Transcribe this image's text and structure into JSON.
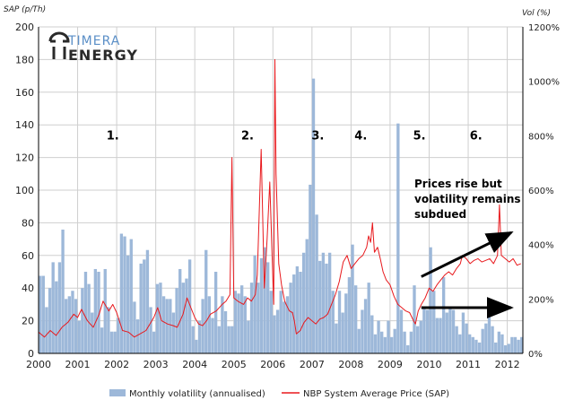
{
  "brand": {
    "logo_line1": "TIMERA",
    "logo_line2": "ENERGY"
  },
  "chart_data": {
    "type": "bar+line",
    "ylabel_left": "SAP (p/Th)",
    "ylabel_right": "Vol (%)",
    "ylim_left": [
      0,
      200
    ],
    "ylim_right": [
      0,
      1200
    ],
    "yticks_left": [
      "0",
      "20",
      "40",
      "60",
      "80",
      "100",
      "120",
      "140",
      "160",
      "180",
      "200"
    ],
    "yticks_right": [
      "0%",
      "200%",
      "400%",
      "600%",
      "800%",
      "1000%",
      "1200%"
    ],
    "xlim": [
      2000.0,
      2012.4
    ],
    "xticks": [
      "2000",
      "2001",
      "2002",
      "2003",
      "2004",
      "2005",
      "2006",
      "2007",
      "2008",
      "2009",
      "2010",
      "2011",
      "2012"
    ],
    "grid": true,
    "legend_position": "bottom",
    "series": [
      {
        "name": "Monthly volatility (annualised)",
        "type": "bar",
        "axis": "right",
        "color": "#9db8d9",
        "x_start": 2000.0,
        "step": 0.08333,
        "values": [
          285,
          285,
          170,
          240,
          335,
          265,
          335,
          455,
          200,
          210,
          230,
          200,
          120,
          240,
          300,
          255,
          150,
          310,
          300,
          95,
          310,
          170,
          80,
          80,
          130,
          440,
          430,
          360,
          420,
          190,
          125,
          330,
          345,
          380,
          170,
          80,
          255,
          260,
          210,
          200,
          200,
          150,
          240,
          310,
          260,
          275,
          345,
          100,
          50,
          120,
          200,
          380,
          210,
          130,
          300,
          100,
          210,
          155,
          100,
          100,
          230,
          220,
          250,
          210,
          120,
          260,
          360,
          260,
          350,
          390,
          335,
          230,
          140,
          160,
          230,
          190,
          210,
          260,
          290,
          320,
          300,
          370,
          420,
          620,
          1010,
          510,
          340,
          370,
          330,
          370,
          230,
          110,
          230,
          150,
          220,
          280,
          400,
          250,
          90,
          160,
          200,
          260,
          140,
          70,
          120,
          80,
          60,
          120,
          60,
          90,
          845,
          160,
          80,
          30,
          80,
          250,
          100,
          120,
          170,
          160,
          390,
          230,
          130,
          130,
          280,
          150,
          170,
          160,
          100,
          70,
          150,
          110,
          70,
          60,
          50,
          40,
          90,
          110,
          140,
          100,
          40,
          80,
          70,
          30,
          35,
          60,
          60,
          50,
          60,
          90,
          150,
          150,
          140,
          140,
          60,
          100,
          80,
          60,
          40,
          80,
          40,
          60,
          120,
          90,
          100,
          80,
          50,
          40,
          35,
          60,
          70,
          75,
          75
        ]
      },
      {
        "name": "NBP System Average Price (SAP)",
        "type": "line",
        "axis": "left",
        "color": "#e8191d",
        "linewidth": 1,
        "points": [
          [
            2000.0,
            13
          ],
          [
            2000.15,
            10
          ],
          [
            2000.3,
            14
          ],
          [
            2000.45,
            11
          ],
          [
            2000.6,
            16
          ],
          [
            2000.75,
            19
          ],
          [
            2000.9,
            24
          ],
          [
            2001.0,
            22
          ],
          [
            2001.1,
            27
          ],
          [
            2001.25,
            20
          ],
          [
            2001.4,
            16
          ],
          [
            2001.55,
            24
          ],
          [
            2001.65,
            32
          ],
          [
            2001.8,
            26
          ],
          [
            2001.9,
            30
          ],
          [
            2002.0,
            25
          ],
          [
            2002.15,
            14
          ],
          [
            2002.3,
            13
          ],
          [
            2002.45,
            10
          ],
          [
            2002.6,
            12
          ],
          [
            2002.75,
            14
          ],
          [
            2002.85,
            18
          ],
          [
            2002.95,
            22
          ],
          [
            2003.05,
            28
          ],
          [
            2003.15,
            20
          ],
          [
            2003.3,
            18
          ],
          [
            2003.45,
            17
          ],
          [
            2003.55,
            16
          ],
          [
            2003.7,
            24
          ],
          [
            2003.8,
            34
          ],
          [
            2003.9,
            28
          ],
          [
            2004.0,
            22
          ],
          [
            2004.1,
            18
          ],
          [
            2004.2,
            17
          ],
          [
            2004.3,
            20
          ],
          [
            2004.4,
            24
          ],
          [
            2004.55,
            26
          ],
          [
            2004.7,
            30
          ],
          [
            2004.8,
            32
          ],
          [
            2004.9,
            36
          ],
          [
            2004.95,
            120
          ],
          [
            2005.0,
            34
          ],
          [
            2005.1,
            32
          ],
          [
            2005.25,
            30
          ],
          [
            2005.35,
            34
          ],
          [
            2005.45,
            32
          ],
          [
            2005.55,
            36
          ],
          [
            2005.6,
            48
          ],
          [
            2005.7,
            125
          ],
          [
            2005.78,
            40
          ],
          [
            2005.85,
            70
          ],
          [
            2005.92,
            105
          ],
          [
            2005.98,
            60
          ],
          [
            2006.02,
            30
          ],
          [
            2006.05,
            180
          ],
          [
            2006.08,
            110
          ],
          [
            2006.15,
            55
          ],
          [
            2006.22,
            42
          ],
          [
            2006.3,
            32
          ],
          [
            2006.42,
            26
          ],
          [
            2006.5,
            25
          ],
          [
            2006.55,
            20
          ],
          [
            2006.6,
            12
          ],
          [
            2006.7,
            14
          ],
          [
            2006.8,
            19
          ],
          [
            2006.9,
            22
          ],
          [
            2007.0,
            20
          ],
          [
            2007.1,
            18
          ],
          [
            2007.2,
            21
          ],
          [
            2007.3,
            22
          ],
          [
            2007.4,
            24
          ],
          [
            2007.5,
            30
          ],
          [
            2007.6,
            36
          ],
          [
            2007.7,
            44
          ],
          [
            2007.8,
            56
          ],
          [
            2007.9,
            60
          ],
          [
            2008.0,
            52
          ],
          [
            2008.1,
            55
          ],
          [
            2008.2,
            58
          ],
          [
            2008.3,
            60
          ],
          [
            2008.4,
            65
          ],
          [
            2008.45,
            72
          ],
          [
            2008.5,
            68
          ],
          [
            2008.55,
            80
          ],
          [
            2008.6,
            62
          ],
          [
            2008.68,
            65
          ],
          [
            2008.75,
            58
          ],
          [
            2008.82,
            50
          ],
          [
            2008.9,
            45
          ],
          [
            2009.0,
            42
          ],
          [
            2009.1,
            35
          ],
          [
            2009.2,
            30
          ],
          [
            2009.3,
            28
          ],
          [
            2009.4,
            26
          ],
          [
            2009.5,
            25
          ],
          [
            2009.6,
            20
          ],
          [
            2009.65,
            18
          ],
          [
            2009.72,
            26
          ],
          [
            2009.8,
            30
          ],
          [
            2009.9,
            34
          ],
          [
            2010.0,
            40
          ],
          [
            2010.1,
            38
          ],
          [
            2010.2,
            42
          ],
          [
            2010.3,
            45
          ],
          [
            2010.4,
            48
          ],
          [
            2010.5,
            50
          ],
          [
            2010.6,
            48
          ],
          [
            2010.7,
            52
          ],
          [
            2010.8,
            55
          ],
          [
            2010.85,
            60
          ],
          [
            2010.95,
            58
          ],
          [
            2011.05,
            55
          ],
          [
            2011.15,
            57
          ],
          [
            2011.25,
            58
          ],
          [
            2011.35,
            56
          ],
          [
            2011.45,
            57
          ],
          [
            2011.55,
            58
          ],
          [
            2011.65,
            55
          ],
          [
            2011.75,
            60
          ],
          [
            2011.8,
            91
          ],
          [
            2011.85,
            60
          ],
          [
            2011.95,
            58
          ],
          [
            2012.05,
            56
          ],
          [
            2012.15,
            58
          ],
          [
            2012.25,
            54
          ],
          [
            2012.35,
            55
          ]
        ]
      }
    ],
    "annotations": [
      {
        "label": "1.",
        "x": 2001.9,
        "y": 131
      },
      {
        "label": "2.",
        "x": 2005.35,
        "y": 131
      },
      {
        "label": "3.",
        "x": 2007.15,
        "y": 131
      },
      {
        "label": "4.",
        "x": 2008.25,
        "y": 131
      },
      {
        "label": "5.",
        "x": 2009.75,
        "y": 131
      },
      {
        "label": "6.",
        "x": 2011.2,
        "y": 131
      }
    ],
    "note": {
      "lines": [
        "Prices rise but",
        "volatility remains",
        "subdued"
      ],
      "x": 2009.85,
      "y": 104
    },
    "arrows": [
      {
        "from": [
          2009.8,
          47
        ],
        "to": [
          2012.1,
          74
        ]
      },
      {
        "from": [
          2009.8,
          28
        ],
        "to": [
          2012.1,
          28
        ]
      }
    ]
  }
}
